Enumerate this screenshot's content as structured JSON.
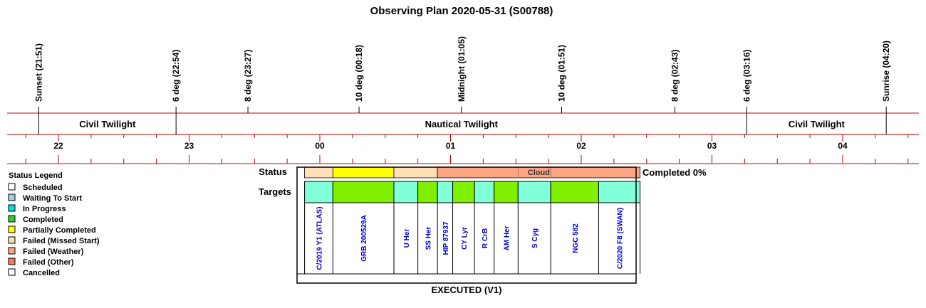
{
  "title": "Observing Plan 2020-05-31 (S00788)",
  "colors": {
    "line": "#c00000",
    "scheduled": "#ffffff",
    "waiting": "#a6d0e0",
    "in_progress": "#00e0e0",
    "completed": "#33cc33",
    "partially_completed": "#ffff00",
    "failed_missed_start": "#ffe0b4",
    "failed_weather": "#fba582",
    "failed_other": "#f07c60",
    "cancelled": "#ffffff",
    "target_aqua": "#80ffd8",
    "target_green": "#80f000",
    "target_text": "#0000cc"
  },
  "chart_data": {
    "type": "timeline",
    "time_range": [
      "21:34",
      "04:34"
    ],
    "events": [
      {
        "label": "Sunset (21:51)",
        "time": "21:51"
      },
      {
        "label": "6 deg (22:54)",
        "time": "22:54"
      },
      {
        "label": "8 deg (23:27)",
        "time": "23:27"
      },
      {
        "label": "10 deg (00:18)",
        "time": "00:18"
      },
      {
        "label": "Midnight (01:05)",
        "time": "01:05"
      },
      {
        "label": "10 deg (01:51)",
        "time": "01:51"
      },
      {
        "label": "8 deg (02:43)",
        "time": "02:43"
      },
      {
        "label": "6 deg (03:16)",
        "time": "03:16"
      },
      {
        "label": "Sunrise (04:20)",
        "time": "04:20"
      }
    ],
    "twilight_bands": [
      {
        "label": "Civil Twilight",
        "start": "21:51",
        "end": "22:54"
      },
      {
        "label": "Nautical Twilight",
        "start": "22:54",
        "end": "03:16"
      },
      {
        "label": "Civil Twilight",
        "start": "03:16",
        "end": "04:20"
      }
    ],
    "hour_ticks": [
      {
        "label": "22",
        "time": "22:00"
      },
      {
        "label": "23",
        "time": "23:00"
      },
      {
        "label": "00",
        "time": "00:00"
      },
      {
        "label": "01",
        "time": "01:00"
      },
      {
        "label": "02",
        "time": "02:00"
      },
      {
        "label": "03",
        "time": "03:00"
      },
      {
        "label": "04",
        "time": "04:00"
      }
    ],
    "status_label": "Status",
    "targets_label": "Targets",
    "completed_text": "Completed 0%",
    "executed_label": "EXECUTED (V1)",
    "status_segments": [
      {
        "start": "23:53",
        "end": "00:06",
        "status": "failed_missed_start",
        "label": ""
      },
      {
        "start": "00:06",
        "end": "00:34",
        "status": "partially_completed",
        "label": ""
      },
      {
        "start": "00:34",
        "end": "00:54",
        "status": "failed_missed_start",
        "label": ""
      },
      {
        "start": "00:54",
        "end": "02:27",
        "status": "failed_weather",
        "label": "Cloud"
      }
    ],
    "targets": [
      {
        "name": "C/2019 Y1 (ATLAS)",
        "start": "23:53",
        "end": "00:06",
        "color": "aqua"
      },
      {
        "name": "GRB 200529A",
        "start": "00:06",
        "end": "00:34",
        "color": "green"
      },
      {
        "name": "U Her",
        "start": "00:34",
        "end": "00:45",
        "color": "aqua"
      },
      {
        "name": "SS Her",
        "start": "00:45",
        "end": "00:54",
        "color": "green"
      },
      {
        "name": "HIP 87937",
        "start": "00:54",
        "end": "01:01",
        "color": "aqua"
      },
      {
        "name": "CY Lyr",
        "start": "01:01",
        "end": "01:11",
        "color": "green"
      },
      {
        "name": "R CrB",
        "start": "01:11",
        "end": "01:20",
        "color": "aqua"
      },
      {
        "name": "AM Her",
        "start": "01:20",
        "end": "01:31",
        "color": "green"
      },
      {
        "name": "S Cyg",
        "start": "01:31",
        "end": "01:46",
        "color": "aqua"
      },
      {
        "name": "NGC 582",
        "start": "01:46",
        "end": "02:08",
        "color": "green"
      },
      {
        "name": "C/2020 F8 (SWAN)",
        "start": "02:08",
        "end": "02:27",
        "color": "aqua"
      }
    ]
  },
  "legend": {
    "title": "Status Legend",
    "items": [
      {
        "label": "Scheduled",
        "color": "#ffffff"
      },
      {
        "label": "Waiting To Start",
        "color": "#a6d0e0"
      },
      {
        "label": "In Progress",
        "color": "#00e0e0"
      },
      {
        "label": "Completed",
        "color": "#33cc33"
      },
      {
        "label": "Partially Completed",
        "color": "#ffff00"
      },
      {
        "label": "Failed (Missed Start)",
        "color": "#ffe0b4"
      },
      {
        "label": "Failed (Weather)",
        "color": "#fba582"
      },
      {
        "label": "Failed (Other)",
        "color": "#f07c60"
      },
      {
        "label": "Cancelled",
        "color": "#ffffff"
      }
    ]
  }
}
